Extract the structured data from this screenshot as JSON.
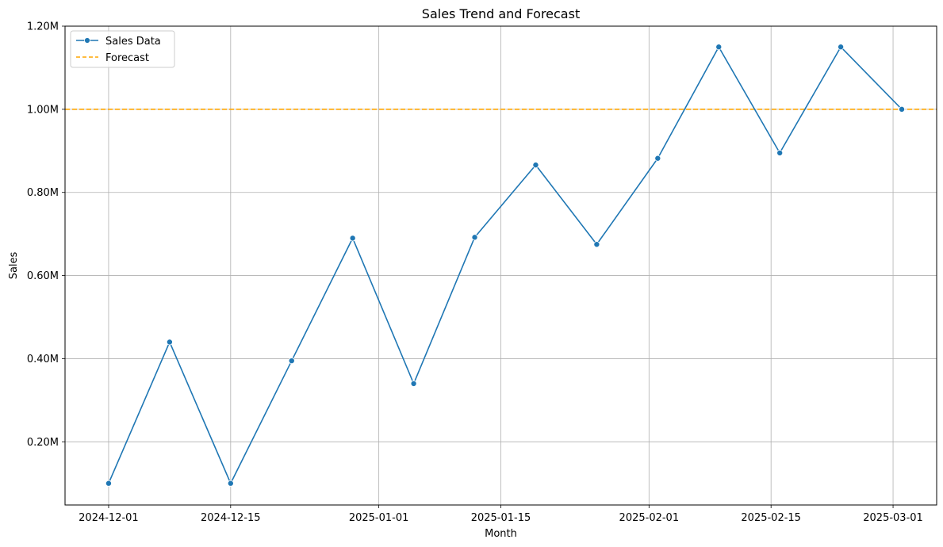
{
  "chart_data": {
    "type": "line",
    "title": "Sales Trend and Forecast",
    "xlabel": "Month",
    "ylabel": "Sales",
    "x_ticks": [
      "2024-12-01",
      "2024-12-15",
      "2025-01-01",
      "2025-01-15",
      "2025-02-01",
      "2025-02-15",
      "2025-03-01"
    ],
    "y_ticks": [
      "0.20M",
      "0.40M",
      "0.60M",
      "0.80M",
      "1.00M",
      "1.20M"
    ],
    "y_tick_values": [
      0.2,
      0.4,
      0.6,
      0.8,
      1.0,
      1.2
    ],
    "ylim": [
      0.048,
      1.2
    ],
    "xlim": [
      "2024-11-26",
      "2025-03-06"
    ],
    "grid": true,
    "legend_position": "top-left",
    "series": [
      {
        "name": "Sales Data",
        "style": "line-with-markers",
        "color": "#1f77b4",
        "x": [
          "2024-12-01",
          "2024-12-08",
          "2024-12-15",
          "2024-12-22",
          "2024-12-29",
          "2025-01-05",
          "2025-01-12",
          "2025-01-19",
          "2025-01-26",
          "2025-02-02",
          "2025-02-09",
          "2025-02-16",
          "2025-02-23",
          "2025-03-02"
        ],
        "values": [
          0.1,
          0.44,
          0.1,
          0.395,
          0.69,
          0.34,
          0.692,
          0.866,
          0.675,
          0.882,
          1.15,
          0.895,
          1.15,
          1.0
        ]
      },
      {
        "name": "Forecast",
        "style": "dashed",
        "color": "#ffa500",
        "values": [
          1.0
        ]
      }
    ]
  }
}
